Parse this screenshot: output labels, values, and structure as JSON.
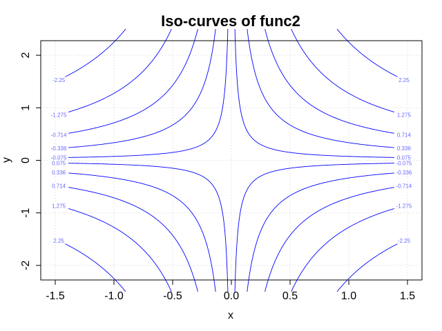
{
  "chart_data": {
    "type": "contour",
    "title": "Iso-curves of func2",
    "xlabel": "x",
    "ylabel": "y",
    "xlim": [
      -1.5,
      1.5
    ],
    "ylim": [
      -2.5,
      2.5
    ],
    "x_ticks": [
      -1.5,
      -1.0,
      -0.5,
      0.0,
      0.5,
      1.0,
      1.5
    ],
    "x_tick_labels": [
      "-1.5",
      "-1.0",
      "-0.5",
      "0.0",
      "0.5",
      "1.0",
      "1.5"
    ],
    "y_ticks": [
      -2,
      -1,
      0,
      1,
      2
    ],
    "y_tick_labels": [
      "-2",
      "-1",
      "0",
      "1",
      "2"
    ],
    "function_form": "z = x * y",
    "levels": [
      -2.25,
      -1.275,
      -0.714,
      -0.336,
      -0.075,
      0.075,
      0.336,
      0.714,
      1.275,
      2.25
    ],
    "level_labels": [
      "-2.25",
      "-1.275",
      "-0.714",
      "-0.336",
      "-0.075",
      "0.075",
      "0.336",
      "0.714",
      "1.275",
      "2.25"
    ],
    "grid": true,
    "line_color": "#0000ff",
    "label_color": "#6666ff",
    "grid_color": "#d3d3d3"
  }
}
